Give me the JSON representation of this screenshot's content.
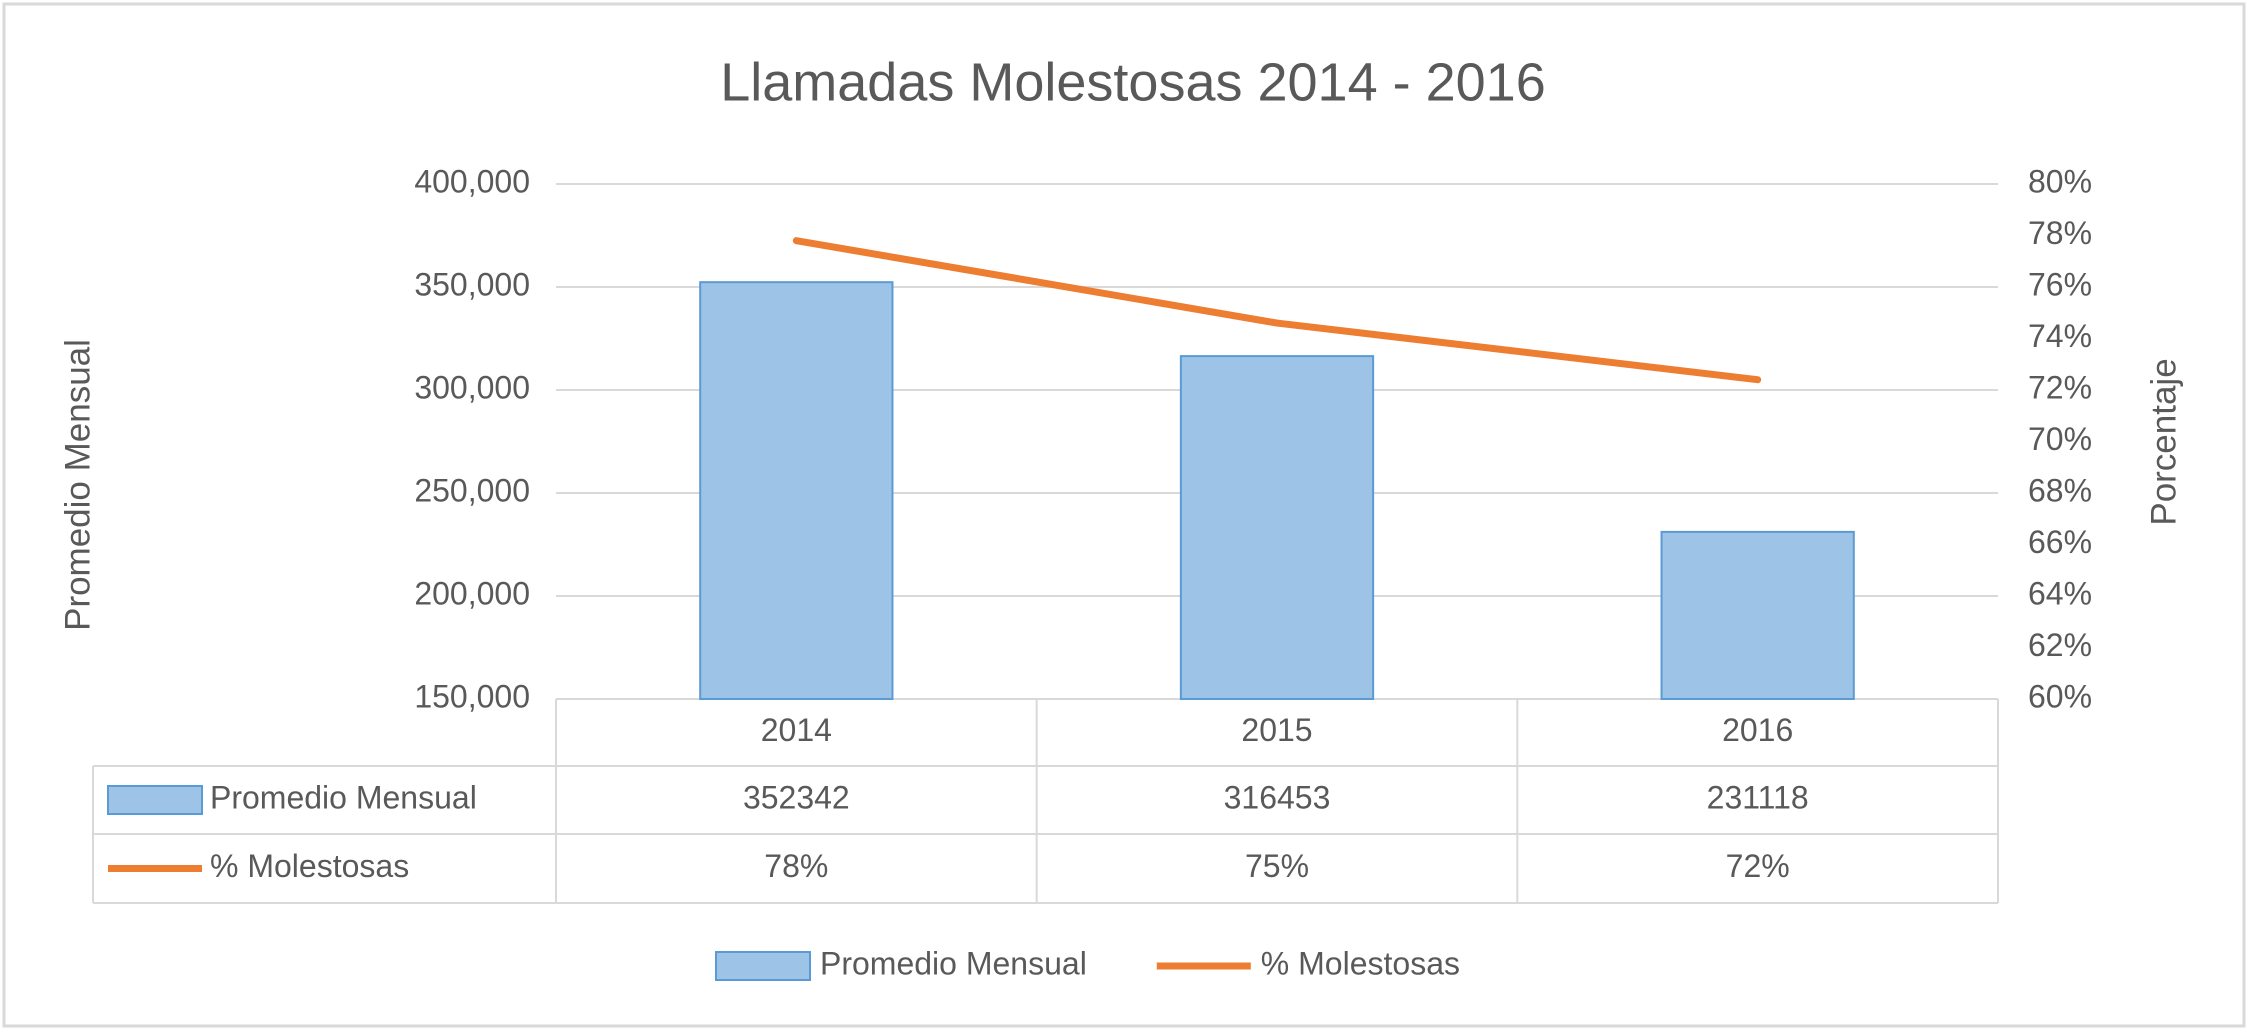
{
  "chart_data": {
    "type": "bar",
    "title": "Llamadas Molestosas 2014 - 2016",
    "y_label": "Promedio Mensual",
    "y2_label": "Porcentaje",
    "categories": [
      "2014",
      "2015",
      "2016"
    ],
    "series": [
      {
        "name": "Promedio Mensual",
        "type": "bar",
        "color": "#9dc3e6",
        "edge_color": "#5b9bd5",
        "values": [
          352342,
          316453,
          231118
        ]
      },
      {
        "name": "% Molestosas",
        "type": "line",
        "axis": "y2",
        "color": "#ed7d31",
        "values": [
          77.8,
          74.6,
          72.4
        ],
        "value_labels": [
          "78%",
          "75%",
          "72%"
        ]
      }
    ],
    "ylim": [
      150000,
      400000
    ],
    "yticks": [
      {
        "value": 150000,
        "label": "150,000"
      },
      {
        "value": 200000,
        "label": "200,000"
      },
      {
        "value": 250000,
        "label": "250,000"
      },
      {
        "value": 300000,
        "label": "300,000"
      },
      {
        "value": 350000,
        "label": "350,000"
      },
      {
        "value": 400000,
        "label": "400,000"
      }
    ],
    "y2lim": [
      60,
      80
    ],
    "y2ticks": [
      {
        "value": 60,
        "label": "60%"
      },
      {
        "value": 62,
        "label": "62%"
      },
      {
        "value": 64,
        "label": "64%"
      },
      {
        "value": 66,
        "label": "66%"
      },
      {
        "value": 68,
        "label": "68%"
      },
      {
        "value": 70,
        "label": "70%"
      },
      {
        "value": 72,
        "label": "72%"
      },
      {
        "value": 74,
        "label": "74%"
      },
      {
        "value": 76,
        "label": "76%"
      },
      {
        "value": 78,
        "label": "78%"
      },
      {
        "value": 80,
        "label": "80%"
      }
    ],
    "grid": true,
    "legend": "bottom",
    "data_table": true
  }
}
